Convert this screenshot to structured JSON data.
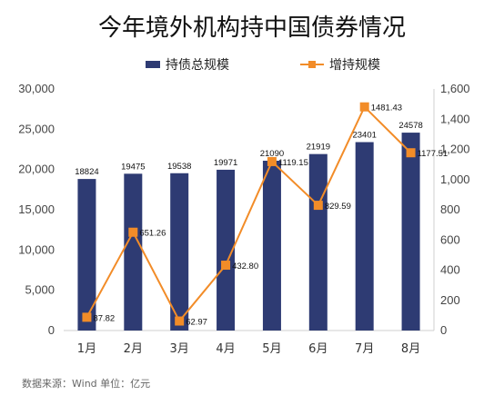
{
  "chart_data": {
    "type": "bar",
    "title": "今年境外机构持中国债券情况",
    "categories": [
      "1月",
      "2月",
      "3月",
      "4月",
      "5月",
      "6月",
      "7月",
      "8月"
    ],
    "series": [
      {
        "name": "持债总规模",
        "kind": "bar",
        "axis": "left",
        "color": "#2E3B73",
        "values": [
          18824,
          19475,
          19538,
          19971,
          21090,
          21919,
          23401,
          24578
        ],
        "labels": [
          "18824",
          "19475",
          "19538",
          "19971",
          "21090",
          "21919",
          "23401",
          "24578"
        ]
      },
      {
        "name": "增持规模",
        "kind": "line",
        "axis": "right",
        "color": "#F28C28",
        "values": [
          87.82,
          651.26,
          62.97,
          432.8,
          1119.15,
          829.59,
          1481.43,
          1177.51
        ],
        "labels": [
          "87.82",
          "651.26",
          "62.97",
          "432.80",
          "1119.15",
          "829.59",
          "1481.43",
          "1177.51"
        ]
      }
    ],
    "y_left": {
      "min": 0,
      "max": 30000,
      "ticks": [
        "0",
        "5,000",
        "10,000",
        "15,000",
        "20,000",
        "25,000",
        "30,000"
      ]
    },
    "y_right": {
      "min": 0,
      "max": 1600,
      "ticks": [
        "0",
        "200",
        "400",
        "600",
        "800",
        "1,000",
        "1,200",
        "1,400",
        "1,600"
      ]
    },
    "grid": false,
    "legend_position": "top"
  },
  "source_note": "数据来源：Wind    单位：亿元"
}
